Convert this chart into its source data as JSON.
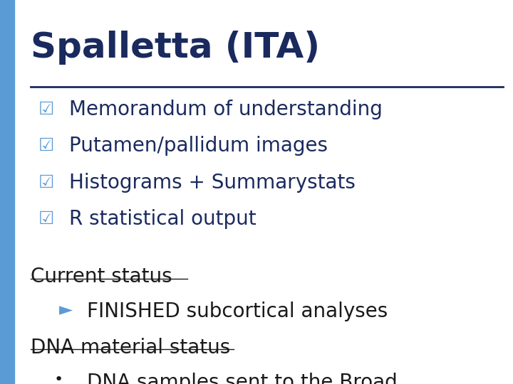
{
  "title": "Spalletta (ITA)",
  "title_color": "#1a2a5e",
  "title_fontsize": 36,
  "separator_color": "#1a2a5e",
  "background_color": "#ffffff",
  "bullet_items": [
    "Memorandum of understanding",
    "Putamen/pallidum images",
    "Histograms + Summarystats",
    "R statistical output"
  ],
  "bullet_color": "#1a2a5e",
  "bullet_fontsize": 20,
  "bullet_symbol": "☑",
  "bullet_symbol_color": "#5b9bd5",
  "sidebar_color": "#5b9bd5",
  "status_heading1": "Current status",
  "status_heading1_color": "#1a1a1a",
  "status_heading1_fontsize": 20,
  "status_line1_arrow": "►",
  "status_line1_arrow_color": "#5b9bd5",
  "status_line1_text": "FINISHED subcortical analyses",
  "status_line1_fontsize": 20,
  "status_heading2": "DNA material status",
  "status_heading2_color": "#1a1a1a",
  "status_heading2_fontsize": 20,
  "status_line2_bullet": "•",
  "status_line2_text": "DNA samples sent to the Broad",
  "status_line2_fontsize": 20,
  "status_text_color": "#1a1a1a"
}
